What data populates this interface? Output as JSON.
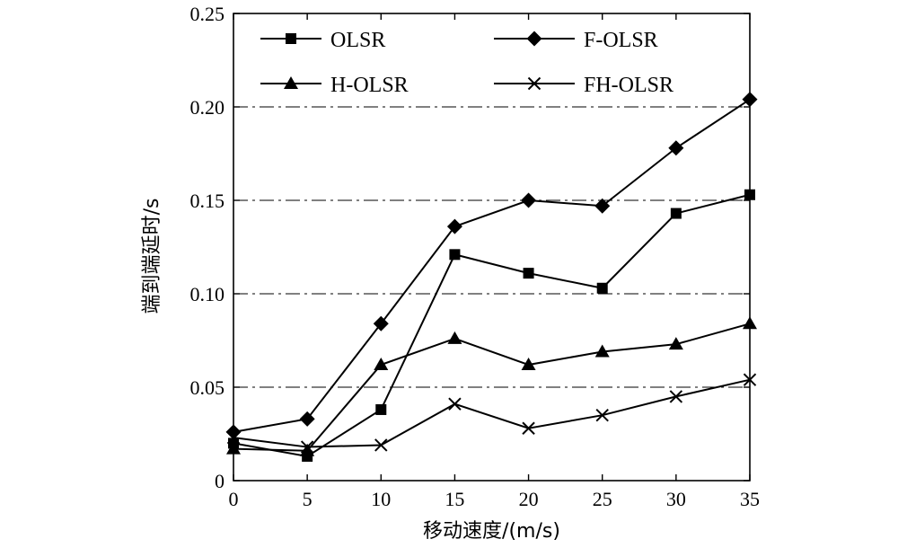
{
  "chart_data": {
    "type": "line",
    "xlabel": "移动速度/(m/s)",
    "ylabel": "端到端延时/s",
    "x": [
      0,
      5,
      10,
      15,
      20,
      25,
      30,
      35
    ],
    "xticks": [
      "0",
      "5",
      "10",
      "15",
      "20",
      "25",
      "30",
      "35"
    ],
    "yticks": [
      "0",
      "0.05",
      "0.10",
      "0.15",
      "0.20",
      "0.25"
    ],
    "yticks_values": [
      0,
      0.05,
      0.1,
      0.15,
      0.2,
      0.25
    ],
    "xlim": [
      0,
      35
    ],
    "ylim": [
      0,
      0.25
    ],
    "grid": "horizontal dash-dot",
    "legend_position": "top",
    "series": [
      {
        "name": "OLSR",
        "marker": "square",
        "values": [
          0.02,
          0.013,
          0.038,
          0.121,
          0.111,
          0.103,
          0.143,
          0.153
        ]
      },
      {
        "name": "F-OLSR",
        "marker": "diamond",
        "values": [
          0.026,
          0.033,
          0.084,
          0.136,
          0.15,
          0.147,
          0.178,
          0.204
        ]
      },
      {
        "name": "H-OLSR",
        "marker": "triangle",
        "values": [
          0.017,
          0.016,
          0.062,
          0.076,
          0.062,
          0.069,
          0.073,
          0.084
        ]
      },
      {
        "name": "FH-OLSR",
        "marker": "x",
        "values": [
          0.023,
          0.018,
          0.019,
          0.041,
          0.028,
          0.035,
          0.045,
          0.054
        ]
      }
    ],
    "colors": {
      "line": "#000000",
      "grid": "#000000"
    }
  }
}
